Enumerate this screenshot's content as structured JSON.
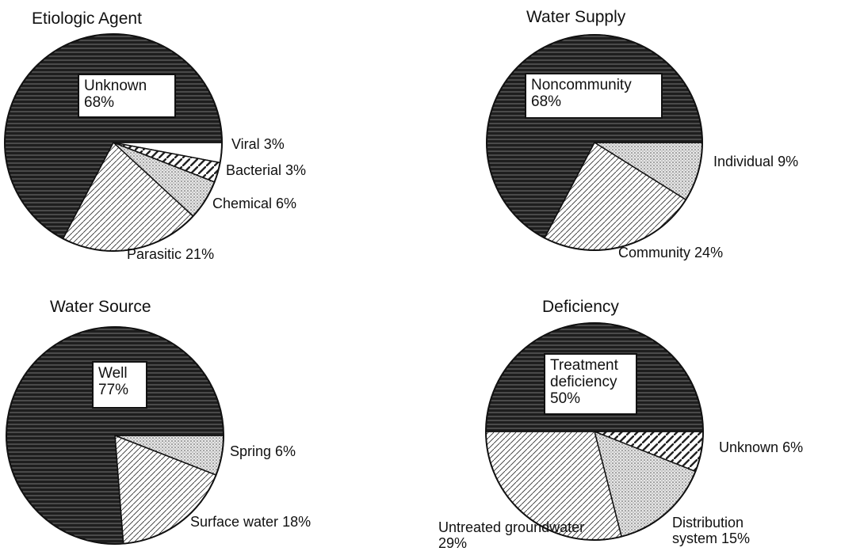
{
  "chart_data": [
    {
      "type": "pie",
      "title": "Etiologic Agent",
      "categories": [
        "Viral",
        "Bacterial",
        "Chemical",
        "Parasitic",
        "Unknown"
      ],
      "values": [
        3,
        3,
        6,
        21,
        68
      ],
      "value_labels": [
        "3%",
        "3%",
        "6%",
        "21%",
        "68%"
      ],
      "patterns": [
        "white",
        "bold-hatch",
        "dots",
        "hatch",
        "dark-lines"
      ]
    },
    {
      "type": "pie",
      "title": "Water Supply",
      "categories": [
        "Individual",
        "Community",
        "Noncommunity"
      ],
      "values": [
        9,
        24,
        68
      ],
      "value_labels": [
        "9%",
        "24%",
        "68%"
      ],
      "patterns": [
        "dots",
        "hatch",
        "dark-lines"
      ]
    },
    {
      "type": "pie",
      "title": "Water Source",
      "categories": [
        "Spring",
        "Surface water",
        "Well"
      ],
      "values": [
        6,
        18,
        77
      ],
      "value_labels": [
        "6%",
        "18%",
        "77%"
      ],
      "patterns": [
        "dots",
        "hatch",
        "dark-lines"
      ]
    },
    {
      "type": "pie",
      "title": "Deficiency",
      "categories": [
        "Unknown",
        "Distribution system",
        "Untreated groundwater",
        "Treatment deficiency"
      ],
      "values": [
        6,
        15,
        29,
        50
      ],
      "value_labels": [
        "6%",
        "15%",
        "29%",
        "50%"
      ],
      "patterns": [
        "bold-hatch",
        "dots",
        "hatch",
        "dark-lines"
      ]
    }
  ]
}
